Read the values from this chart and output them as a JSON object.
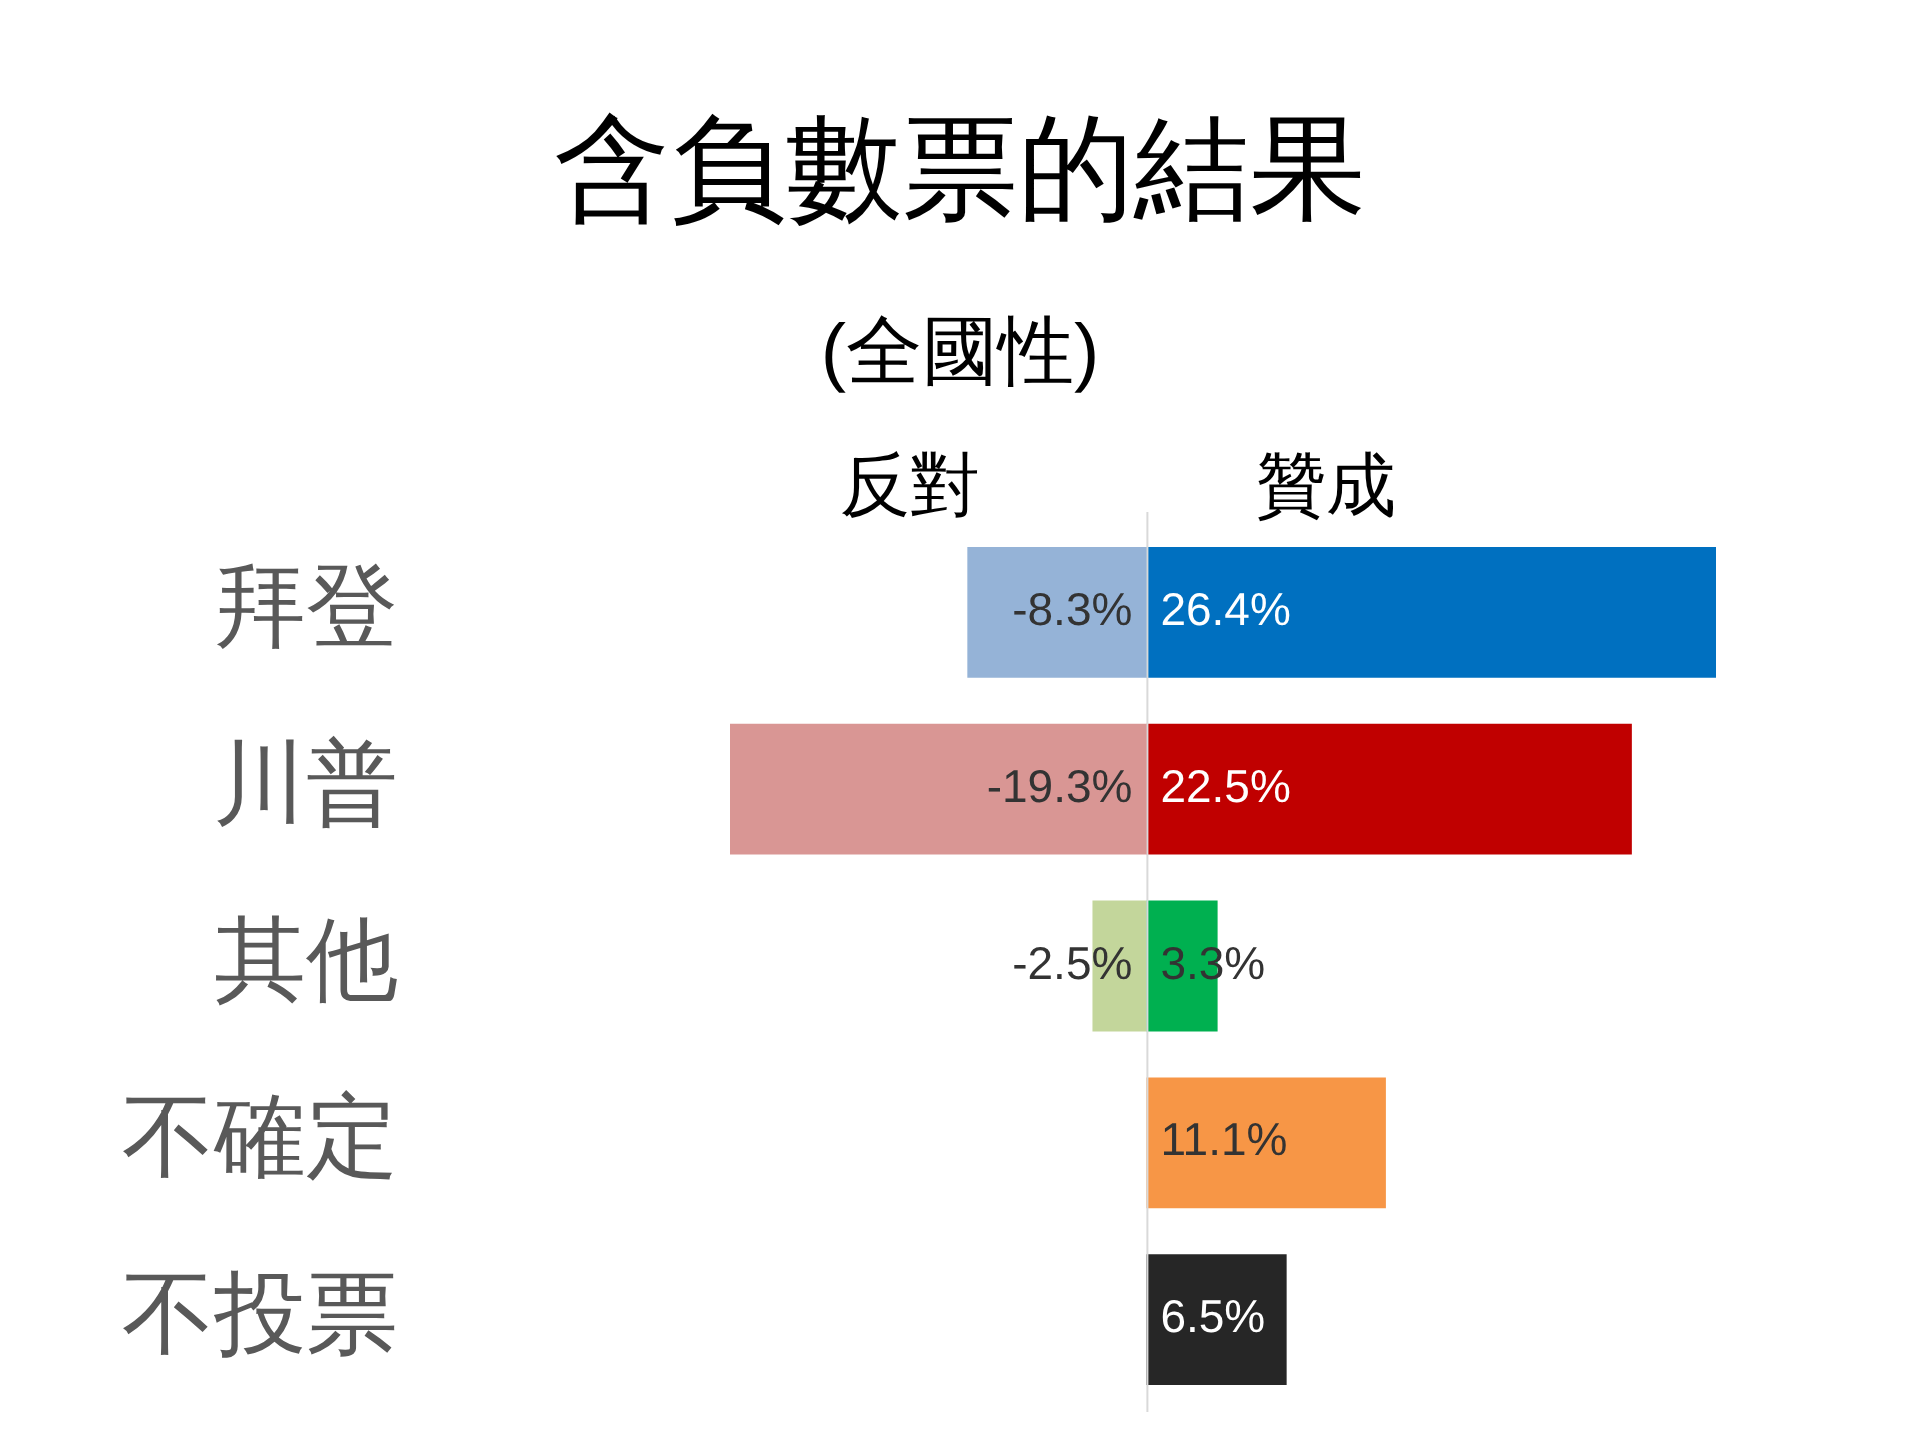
{
  "chart_data": {
    "type": "bar",
    "title": "含負數票的結果",
    "subtitle": "(全國性)",
    "orientation": "horizontal",
    "stacked": true,
    "categories": [
      "拜登",
      "川普",
      "其他",
      "不確定",
      "不投票"
    ],
    "series": [
      {
        "name": "反對",
        "colors": [
          "#95b3d7",
          "#d99694",
          "#c3d69b",
          null,
          null
        ],
        "values": [
          -8.3,
          -19.3,
          -2.5,
          null,
          null
        ],
        "value_labels": [
          "-8.3%",
          "-19.3%",
          "-2.5%",
          null,
          null
        ]
      },
      {
        "name": "贊成",
        "colors": [
          "#0070c0",
          "#c00000",
          "#00b050",
          "#f79646",
          "#262626"
        ],
        "values": [
          26.4,
          22.5,
          3.3,
          11.1,
          6.5
        ],
        "value_labels": [
          "26.4%",
          "22.5%",
          "3.3%",
          "11.1%",
          "6.5%"
        ]
      }
    ],
    "tick_labels": "y"
  }
}
